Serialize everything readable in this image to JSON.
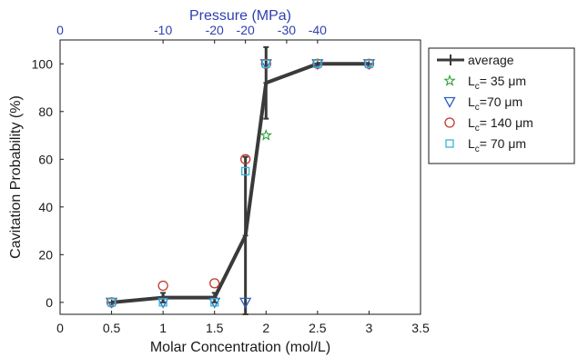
{
  "chart_data": {
    "type": "scatter",
    "xlabel": "Molar Concentration (mol/L)",
    "ylabel": "Cavitation Probability (%)",
    "x2label": "Pressure (MPa)",
    "xlim": [
      0,
      3.5
    ],
    "ylim": [
      -5,
      110
    ],
    "x_ticks": [
      0,
      0.5,
      1,
      1.5,
      2,
      2.5,
      3,
      3.5
    ],
    "x_tick_labels": [
      "0",
      "0.5",
      "1",
      "1.5",
      "2",
      "2.5",
      "3",
      "3.5"
    ],
    "y_ticks": [
      0,
      20,
      40,
      60,
      80,
      100
    ],
    "y_tick_labels": [
      "0",
      "20",
      "40",
      "60",
      "80",
      "100"
    ],
    "x2_ticks": [
      0,
      1,
      1.5,
      1.8,
      2.2,
      2.5
    ],
    "x2_tick_labels": [
      "0",
      "-10",
      "-20",
      "-20",
      "-30",
      "-40"
    ],
    "grid": false,
    "legend_position": "outside-right",
    "average": {
      "name": "average",
      "color": "#3a3a3a",
      "x": [
        0.5,
        1.0,
        1.5,
        1.8,
        2.0,
        2.5,
        3.0
      ],
      "y": [
        0,
        2,
        2,
        28,
        92,
        100,
        100
      ],
      "err": [
        0,
        2,
        2,
        33,
        15,
        0,
        0
      ]
    },
    "series": [
      {
        "name": "L_c= 35 μm",
        "marker": "star",
        "color": "#2e9e3a",
        "x": [
          2.0
        ],
        "y": [
          70
        ]
      },
      {
        "name": "L_c=70 μm",
        "marker": "triangle-down",
        "color": "#2f5fbf",
        "x": [
          0.5,
          1.0,
          1.5,
          1.8,
          2.0,
          2.5,
          3.0
        ],
        "y": [
          0,
          0,
          0,
          0,
          100,
          100,
          100
        ]
      },
      {
        "name": "L_c= 140 μm",
        "marker": "circle",
        "color": "#c0392b",
        "x": [
          0.5,
          1.0,
          1.5,
          1.8,
          2.0,
          2.5,
          3.0
        ],
        "y": [
          0,
          7,
          8,
          60,
          100,
          100,
          100
        ]
      },
      {
        "name": "L_c= 70 μm",
        "marker": "square",
        "color": "#35b6d4",
        "x": [
          0.5,
          1.0,
          1.5,
          1.8,
          2.0,
          2.5,
          3.0
        ],
        "y": [
          0,
          0,
          0,
          55,
          100,
          100,
          100
        ]
      }
    ],
    "legend": [
      {
        "prefix": "",
        "sub": "",
        "suffix": "average"
      },
      {
        "prefix": "L",
        "sub": "c",
        "suffix": "= 35 μm"
      },
      {
        "prefix": "L",
        "sub": "c",
        "suffix": "=70 μm"
      },
      {
        "prefix": "L",
        "sub": "c",
        "suffix": "= 140 μm"
      },
      {
        "prefix": "L",
        "sub": "c",
        "suffix": "= 70 μm"
      }
    ]
  }
}
